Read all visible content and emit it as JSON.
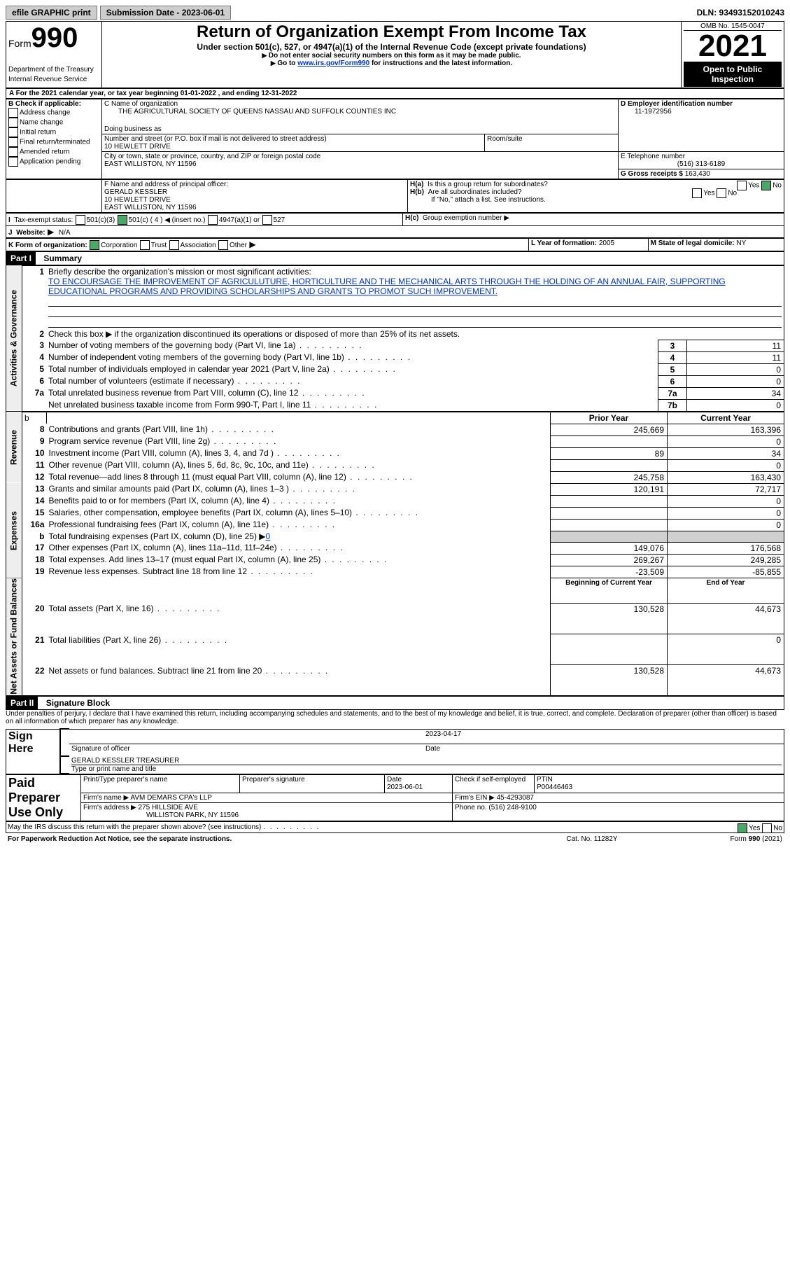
{
  "top": {
    "efile": "efile GRAPHIC print",
    "submission_label": "Submission Date - 2023-06-01",
    "dln": "DLN: 93493152010243"
  },
  "header": {
    "form_word": "Form",
    "form_num": "990",
    "dept": "Department of the Treasury",
    "irs": "Internal Revenue Service",
    "title": "Return of Organization Exempt From Income Tax",
    "subtitle": "Under section 501(c), 527, or 4947(a)(1) of the Internal Revenue Code (except private foundations)",
    "note1": "Do not enter social security numbers on this form as it may be made public.",
    "note2_pre": "Go to ",
    "note2_link": "www.irs.gov/Form990",
    "note2_post": " for instructions and the latest information.",
    "omb": "OMB No. 1545-0047",
    "year": "2021",
    "open": "Open to Public Inspection"
  },
  "lineA": "For the 2021 calendar year, or tax year beginning 01-01-2022      , and ending 12-31-2022",
  "boxB": {
    "label": "B Check if applicable:",
    "opts": [
      "Address change",
      "Name change",
      "Initial return",
      "Final return/terminated",
      "Amended return",
      "Application pending"
    ]
  },
  "boxC": {
    "name_label": "C Name of organization",
    "name": "THE AGRICULTURAL SOCIETY OF QUEENS NASSAU AND SUFFOLK COUNTIES INC",
    "dba": "Doing business as",
    "street_label": "Number and street (or P.O. box if mail is not delivered to street address)",
    "room": "Room/suite",
    "street": "10 HEWLETT DRIVE",
    "city_label": "City or town, state or province, country, and ZIP or foreign postal code",
    "city": "EAST WILLISTON, NY  11596"
  },
  "boxD": {
    "label": "D Employer identification number",
    "value": "11-1972956"
  },
  "boxE": {
    "label": "E Telephone number",
    "value": "(516) 313-6189"
  },
  "boxG": {
    "label": "G Gross receipts $",
    "value": "163,430"
  },
  "boxF": {
    "label": "F  Name and address of principal officer:",
    "l1": "GERALD KESSLER",
    "l2": "10 HEWLETT DRIVE",
    "l3": "EAST WILLISTON, NY  11596"
  },
  "boxH": {
    "a": "Is this a group return for subordinates?",
    "b": "Are all subordinates included?",
    "note": "If \"No,\" attach a list. See instructions.",
    "c": "Group exemption number"
  },
  "boxI": {
    "label": "Tax-exempt status:",
    "o1": "501(c)(3)",
    "o2": "501(c) ( 4 ) ◀ (insert no.)",
    "o3": "4947(a)(1) or",
    "o4": "527"
  },
  "boxJ": {
    "label": "Website:",
    "value": "N/A"
  },
  "boxK": {
    "label": "K Form of organization:",
    "o1": "Corporation",
    "o2": "Trust",
    "o3": "Association",
    "o4": "Other"
  },
  "boxL": {
    "label": "L Year of formation:",
    "value": "2005"
  },
  "boxM": {
    "label": "M State of legal domicile:",
    "value": "NY"
  },
  "part1": {
    "title": "Summary",
    "q1": "Briefly describe the organization's mission or most significant activities:",
    "mission": "TO ENCOURSAGE THE IMPROVEMENT OF AGRICULUTURE, HORTICULTURE AND THE MECHANICAL ARTS THROUGH THE HOLDING OF AN ANNUAL FAIR, SUPPORTING EDUCATIONAL PROGRAMS AND PROVIDING SCHOLARSHIPS AND GRANTS TO PROMOT SUCH IMPROVEMENT.",
    "q2": "Check this box ▶     if the organization discontinued its operations or disposed of more than 25% of its net assets.",
    "sections": {
      "gov": "Activities & Governance",
      "rev": "Revenue",
      "exp": "Expenses",
      "net": "Net Assets or Fund Balances"
    },
    "rows_gov": [
      {
        "n": "3",
        "t": "Number of voting members of the governing body (Part VI, line 1a)",
        "box": "3",
        "v": "11"
      },
      {
        "n": "4",
        "t": "Number of independent voting members of the governing body (Part VI, line 1b)",
        "box": "4",
        "v": "11"
      },
      {
        "n": "5",
        "t": "Total number of individuals employed in calendar year 2021 (Part V, line 2a)",
        "box": "5",
        "v": "0"
      },
      {
        "n": "6",
        "t": "Total number of volunteers (estimate if necessary)",
        "box": "6",
        "v": "0"
      },
      {
        "n": "7a",
        "t": "Total unrelated business revenue from Part VIII, column (C), line 12",
        "box": "7a",
        "v": "34"
      },
      {
        "n": "",
        "t": "Net unrelated business taxable income from Form 990-T, Part I, line 11",
        "box": "7b",
        "v": "0"
      }
    ],
    "col_headers": {
      "b": "b",
      "prior": "Prior Year",
      "current": "Current Year"
    },
    "rows_rev": [
      {
        "n": "8",
        "t": "Contributions and grants (Part VIII, line 1h)",
        "p": "245,669",
        "c": "163,396"
      },
      {
        "n": "9",
        "t": "Program service revenue (Part VIII, line 2g)",
        "p": "",
        "c": "0"
      },
      {
        "n": "10",
        "t": "Investment income (Part VIII, column (A), lines 3, 4, and 7d )",
        "p": "89",
        "c": "34"
      },
      {
        "n": "11",
        "t": "Other revenue (Part VIII, column (A), lines 5, 6d, 8c, 9c, 10c, and 11e)",
        "p": "",
        "c": "0"
      },
      {
        "n": "12",
        "t": "Total revenue—add lines 8 through 11 (must equal Part VIII, column (A), line 12)",
        "p": "245,758",
        "c": "163,430"
      }
    ],
    "rows_exp": [
      {
        "n": "13",
        "t": "Grants and similar amounts paid (Part IX, column (A), lines 1–3 )",
        "p": "120,191",
        "c": "72,717"
      },
      {
        "n": "14",
        "t": "Benefits paid to or for members (Part IX, column (A), line 4)",
        "p": "",
        "c": "0"
      },
      {
        "n": "15",
        "t": "Salaries, other compensation, employee benefits (Part IX, column (A), lines 5–10)",
        "p": "",
        "c": "0"
      },
      {
        "n": "16a",
        "t": "Professional fundraising fees (Part IX, column (A), line 11e)",
        "p": "",
        "c": "0"
      }
    ],
    "row_16b": {
      "n": "b",
      "t": "Total fundraising expenses (Part IX, column (D), line 25) ▶",
      "v": "0"
    },
    "rows_exp2": [
      {
        "n": "17",
        "t": "Other expenses (Part IX, column (A), lines 11a–11d, 11f–24e)",
        "p": "149,076",
        "c": "176,568"
      },
      {
        "n": "18",
        "t": "Total expenses. Add lines 13–17 (must equal Part IX, column (A), line 25)",
        "p": "269,267",
        "c": "249,285"
      },
      {
        "n": "19",
        "t": "Revenue less expenses. Subtract line 18 from line 12",
        "p": "-23,509",
        "c": "-85,855"
      }
    ],
    "net_headers": {
      "b": "Beginning of Current Year",
      "e": "End of Year"
    },
    "rows_net": [
      {
        "n": "20",
        "t": "Total assets (Part X, line 16)",
        "p": "130,528",
        "c": "44,673"
      },
      {
        "n": "21",
        "t": "Total liabilities (Part X, line 26)",
        "p": "",
        "c": "0"
      },
      {
        "n": "22",
        "t": "Net assets or fund balances. Subtract line 21 from line 20",
        "p": "130,528",
        "c": "44,673"
      }
    ]
  },
  "part2": {
    "title": "Signature Block",
    "decl": "Under penalties of perjury, I declare that I have examined this return, including accompanying schedules and statements, and to the best of my knowledge and belief, it is true, correct, and complete. Declaration of preparer (other than officer) is based on all information of which preparer has any knowledge.",
    "sign_label": "Sign Here",
    "sig_officer": "Signature of officer",
    "date": "Date",
    "date_val": "2023-04-17",
    "name": "GERALD KESSLER  TREASURER",
    "name_label": "Type or print name and title",
    "paid_label": "Paid Preparer Use Only",
    "pt_name": "Print/Type preparer's name",
    "pt_sig": "Preparer's signature",
    "pt_date": "Date",
    "pt_date_val": "2023-06-01",
    "pt_check": "Check        if self-employed",
    "ptin": "PTIN",
    "ptin_val": "P00446463",
    "firm_name_l": "Firm's name     ▶",
    "firm_name": "AVM DEMARS CPA's LLP",
    "firm_ein_l": "Firm's EIN ▶",
    "firm_ein": "45-4293087",
    "firm_addr_l": "Firm's address ▶",
    "firm_addr1": "275 HILLSIDE AVE",
    "firm_addr2": "WILLISTON PARK, NY  11596",
    "phone_l": "Phone no.",
    "phone": "(516) 248-9100",
    "discuss": "May the IRS discuss this return with the preparer shown above? (see instructions)"
  },
  "footer": {
    "l": "For Paperwork Reduction Act Notice, see the separate instructions.",
    "c": "Cat. No. 11282Y",
    "r": "Form 990 (2021)"
  }
}
